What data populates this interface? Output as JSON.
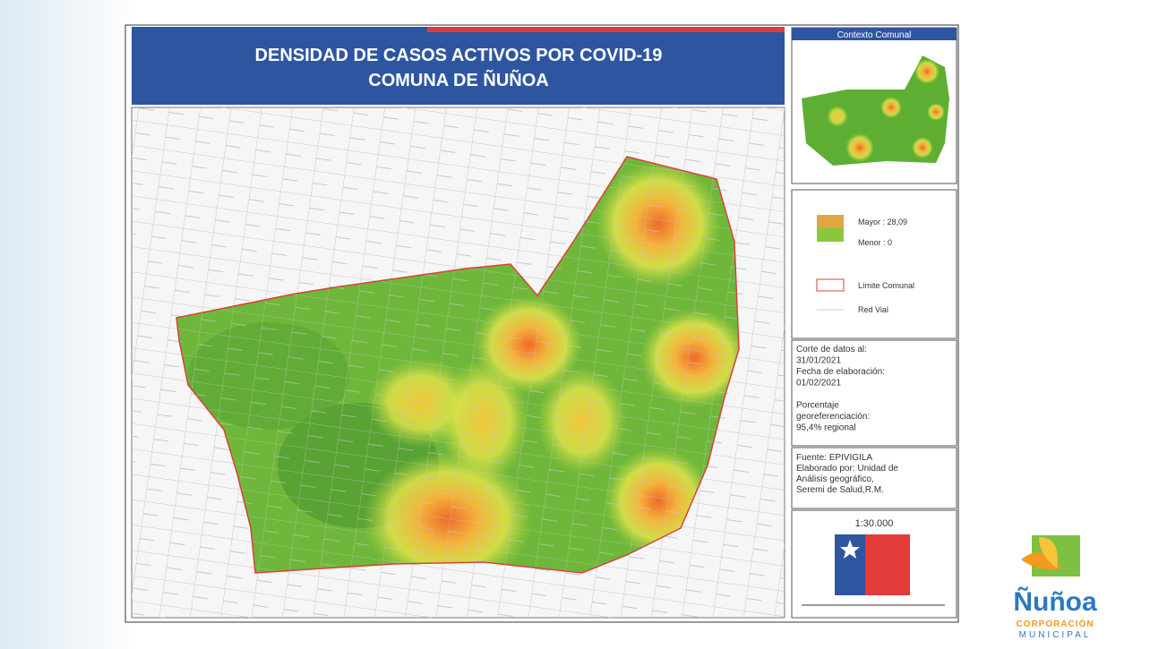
{
  "header": {
    "title_line1": "DENSIDAD DE CASOS ACTIVOS POR COVID-19",
    "title_line2": "COMUNA DE ÑUÑOA"
  },
  "context": {
    "title": "Contexto Comunal"
  },
  "legend": {
    "high": "Mayor : 28,09",
    "low": "Menor : 0",
    "boundary": "Límite Comunal",
    "roads": "Red Vial"
  },
  "info": {
    "lines": [
      "Corte de datos al:",
      "31/01/2021",
      "Fecha de elaboración:",
      "01/02/2021",
      "",
      "Porcentaje",
      "georeferenciación:",
      "95,4% regional"
    ]
  },
  "source": {
    "lines": [
      "Fuente: EPIVIGILA",
      "Elaborado por: Unidad de",
      "Análisis geográfico,",
      "Seremi de Salud,R.M."
    ]
  },
  "scale": "1:30.000",
  "logo": {
    "name": "Ñuñoa",
    "line1": "CORPORACIÓN",
    "line2": "MUNICIPAL"
  }
}
